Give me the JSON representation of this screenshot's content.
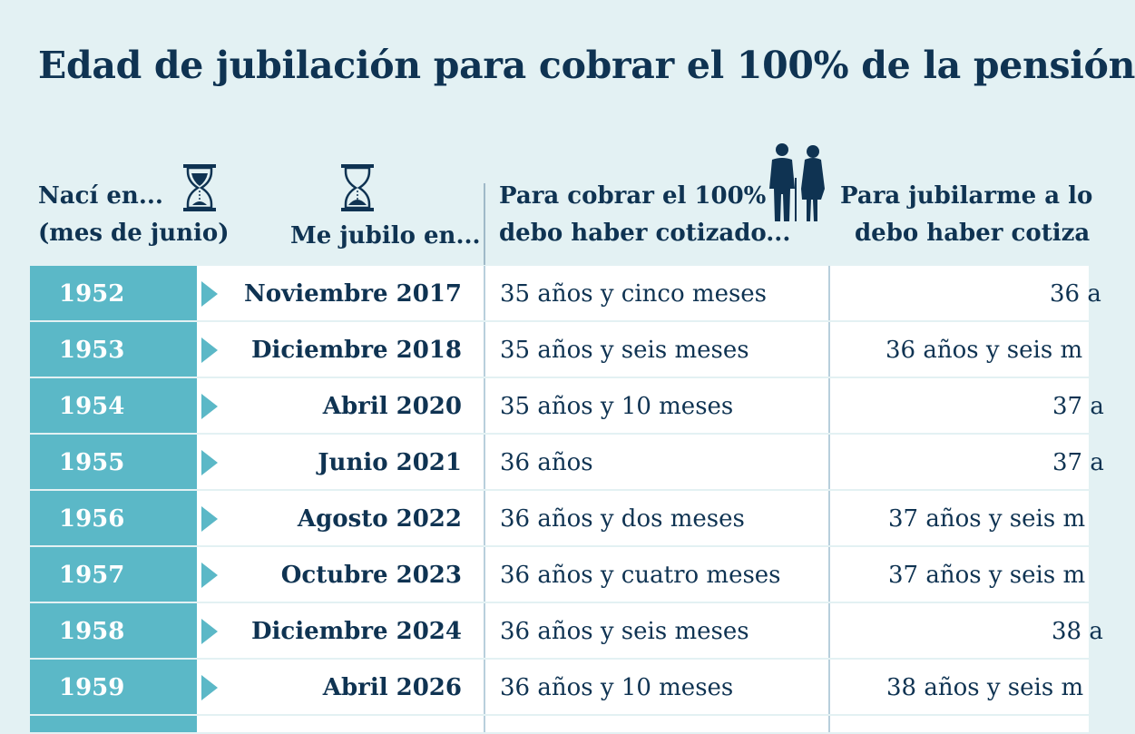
{
  "title": "Edad de jubilación para cobrar el 100% de la pensión",
  "headers": {
    "born_line1": "Nací en...",
    "born_line2": "(mes de junio)",
    "retire": "Me jubilo en...",
    "full_line1": "Para cobrar el 100%",
    "full_line2": "debo haber cotizado...",
    "retire65_line1": "Para jubilarme a lo",
    "retire65_line2": "debo haber cotiza"
  },
  "icons": {
    "hourglass": "hourglass-icon",
    "people": "elderly-couple-icon"
  },
  "colors": {
    "accent": "#5bb8c7",
    "text": "#0f3352",
    "background": "#e3f1f3"
  },
  "rows": [
    {
      "year": "1952",
      "date": "Noviembre 2017",
      "full": "35 años y cinco meses",
      "retire65": "36 a"
    },
    {
      "year": "1953",
      "date": "Diciembre 2018",
      "full": "35 años y seis meses",
      "retire65": "36 años y seis m"
    },
    {
      "year": "1954",
      "date": "Abril 2020",
      "full": "35 años y 10 meses",
      "retire65": "37 a"
    },
    {
      "year": "1955",
      "date": "Junio 2021",
      "full": "36 años",
      "retire65": "37 a"
    },
    {
      "year": "1956",
      "date": "Agosto 2022",
      "full": "36 años y dos meses",
      "retire65": "37 años y seis m"
    },
    {
      "year": "1957",
      "date": "Octubre 2023",
      "full": "36 años y cuatro meses",
      "retire65": "37 años y seis m"
    },
    {
      "year": "1958",
      "date": "Diciembre 2024",
      "full": "36 años y seis meses",
      "retire65": "38 a"
    },
    {
      "year": "1959",
      "date": "Abril 2026",
      "full": "36 años y 10 meses",
      "retire65": "38 años y seis m"
    }
  ]
}
